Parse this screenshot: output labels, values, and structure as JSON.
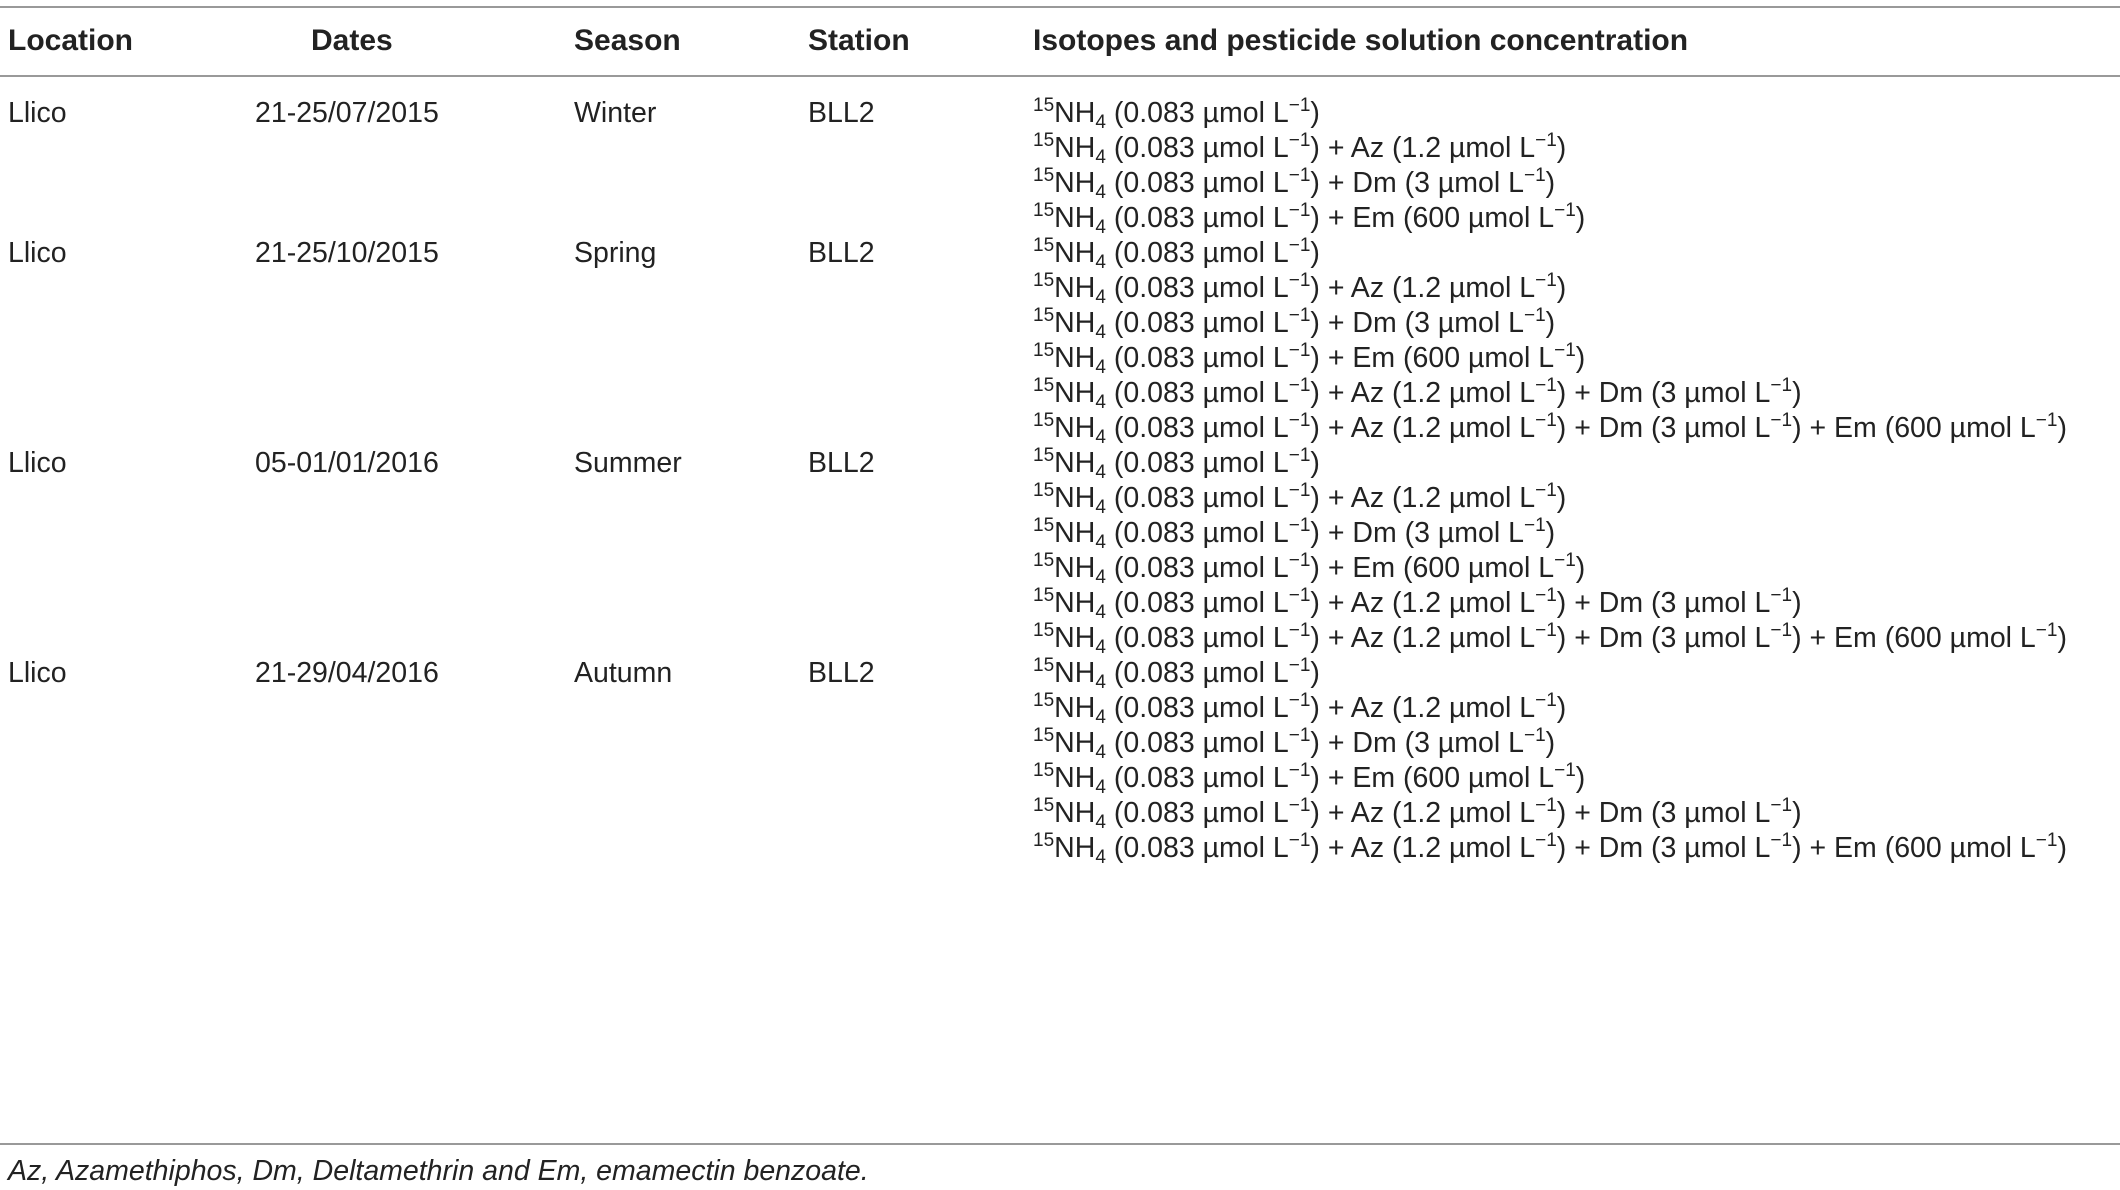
{
  "table": {
    "headers": {
      "location": "Location",
      "dates": "Dates",
      "season": "Season",
      "station": "Station",
      "concentration": "Isotopes and pesticide solution concentration"
    },
    "groups": [
      {
        "location": "Llico",
        "dates": "21-25/07/2015",
        "season": "Winter",
        "station": "BLL2",
        "treatments": [
          [
            "(0.083 µmol L",
            ")"
          ],
          [
            "(0.083 µmol L",
            ") + Az (1.2 µmol L",
            ")"
          ],
          [
            "(0.083 µmol L",
            ") + Dm (3 µmol L",
            ")"
          ],
          [
            "(0.083 µmol L",
            ") + Em (600 µmol L",
            ")"
          ]
        ]
      },
      {
        "location": "Llico",
        "dates": "21-25/10/2015",
        "season": "Spring",
        "station": "BLL2",
        "treatments": [
          [
            "(0.083 µmol L",
            ")"
          ],
          [
            "(0.083 µmol L",
            ") + Az (1.2 µmol L",
            ")"
          ],
          [
            "(0.083 µmol L",
            ") + Dm (3 µmol L",
            ")"
          ],
          [
            "(0.083 µmol L",
            ") + Em (600 µmol L",
            ")"
          ],
          [
            "(0.083 µmol L",
            ") + Az (1.2 µmol L",
            ") + Dm (3 µmol L",
            ")"
          ],
          [
            "(0.083 µmol L",
            ") + Az (1.2 µmol L",
            ") + Dm (3 µmol L",
            ") + Em (600 µmol L",
            ")"
          ]
        ]
      },
      {
        "location": "Llico",
        "dates": "05-01/01/2016",
        "season": "Summer",
        "station": "BLL2",
        "treatments": [
          [
            "(0.083 µmol L",
            ")"
          ],
          [
            "(0.083 µmol L",
            ") + Az (1.2 µmol L",
            ")"
          ],
          [
            "(0.083 µmol L",
            ") + Dm (3 µmol L",
            ")"
          ],
          [
            "(0.083 µmol L",
            ") + Em (600 µmol L",
            ")"
          ],
          [
            "(0.083 µmol L",
            ") + Az (1.2 µmol L",
            ") + Dm (3 µmol L",
            ")"
          ],
          [
            "(0.083 µmol L",
            ") + Az (1.2 µmol L",
            ") + Dm (3 µmol L",
            ") + Em (600 µmol L",
            ")"
          ]
        ]
      },
      {
        "location": "Llico",
        "dates": "21-29/04/2016",
        "season": "Autumn",
        "station": "BLL2",
        "treatments": [
          [
            "(0.083 µmol L",
            ")"
          ],
          [
            "(0.083 µmol L",
            ") + Az (1.2 µmol L",
            ")"
          ],
          [
            "(0.083 µmol L",
            ") + Dm (3 µmol L",
            ")"
          ],
          [
            "(0.083 µmol L",
            ") + Em (600 µmol L",
            ")"
          ],
          [
            "(0.083 µmol L",
            ") + Az (1.2 µmol L",
            ") + Dm (3 µmol L",
            ")"
          ],
          [
            "(0.083 µmol L",
            ") + Az (1.2 µmol L",
            ") + Dm (3 µmol L",
            ") + Em (600 µmol L",
            ")"
          ]
        ]
      }
    ],
    "isotope": {
      "mass_number": "15",
      "element": "NH",
      "subscript": "4",
      "exponent": "−1"
    }
  },
  "footnote": "Az, Azamethiphos, Dm, Deltamethrin and Em, emamectin benzoate."
}
